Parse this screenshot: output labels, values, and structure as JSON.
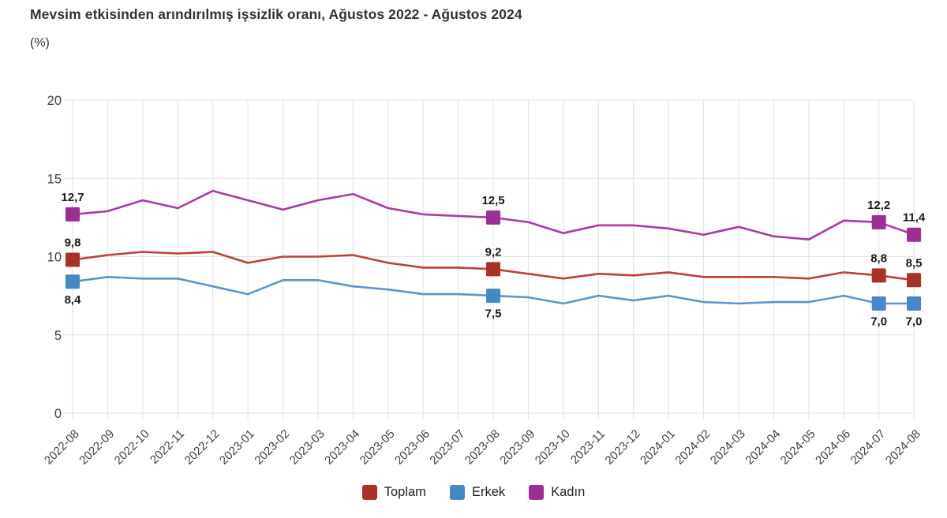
{
  "chart_data": {
    "type": "line",
    "title": "Mevsim etkisinden arındırılmış işsizlik oranı, Ağustos 2022 - Ağustos 2024",
    "unit_label": "(%)",
    "categories": [
      "2022-08",
      "2022-09",
      "2022-10",
      "2022-11",
      "2022-12",
      "2023-01",
      "2023-02",
      "2023-03",
      "2023-04",
      "2023-05",
      "2023-06",
      "2023-07",
      "2023-08",
      "2023-09",
      "2023-10",
      "2023-11",
      "2023-12",
      "2024-01",
      "2024-02",
      "2024-03",
      "2024-04",
      "2024-05",
      "2024-06",
      "2024-07",
      "2024-08"
    ],
    "series": [
      {
        "name": "Toplam",
        "color": "#A93228",
        "line_color": "#BE4132",
        "values": [
          9.8,
          10.1,
          10.3,
          10.2,
          10.3,
          9.6,
          10.0,
          10.0,
          10.1,
          9.6,
          9.3,
          9.3,
          9.2,
          8.9,
          8.6,
          8.9,
          8.8,
          9.0,
          8.7,
          8.7,
          8.7,
          8.6,
          9.0,
          8.8,
          8.5
        ],
        "labeled_points": [
          {
            "i": 0,
            "text": "9,8",
            "side": "above"
          },
          {
            "i": 12,
            "text": "9,2",
            "side": "above"
          },
          {
            "i": 23,
            "text": "8,8",
            "side": "above"
          },
          {
            "i": 24,
            "text": "8,5",
            "side": "above"
          }
        ]
      },
      {
        "name": "Erkek",
        "color": "#4687C7",
        "line_color": "#5D94CF",
        "values": [
          8.4,
          8.7,
          8.6,
          8.6,
          8.1,
          7.6,
          8.5,
          8.5,
          8.1,
          7.9,
          7.6,
          7.6,
          7.5,
          7.4,
          7.0,
          7.5,
          7.2,
          7.5,
          7.1,
          7.0,
          7.1,
          7.1,
          7.5,
          7.0,
          7.0
        ],
        "labeled_points": [
          {
            "i": 0,
            "text": "8,4",
            "side": "below"
          },
          {
            "i": 12,
            "text": "7,5",
            "side": "below"
          },
          {
            "i": 23,
            "text": "7,0",
            "side": "below"
          },
          {
            "i": 24,
            "text": "7,0",
            "side": "below"
          }
        ]
      },
      {
        "name": "Kadın",
        "color": "#9C2E96",
        "line_color": "#AC39A4",
        "values": [
          12.7,
          12.9,
          13.6,
          13.1,
          14.2,
          13.6,
          13.0,
          13.6,
          14.0,
          13.1,
          12.7,
          12.6,
          12.5,
          12.2,
          11.5,
          12.0,
          12.0,
          11.8,
          11.4,
          11.9,
          11.3,
          11.1,
          12.3,
          12.2,
          11.4
        ],
        "labeled_points": [
          {
            "i": 0,
            "text": "12,7",
            "side": "above"
          },
          {
            "i": 12,
            "text": "12,5",
            "side": "above"
          },
          {
            "i": 23,
            "text": "12,2",
            "side": "above"
          },
          {
            "i": 24,
            "text": "11,4",
            "side": "above"
          }
        ]
      }
    ],
    "y_axis": {
      "min": 0,
      "max": 20,
      "tick_interval": 5,
      "ticks": [
        0,
        5,
        10,
        15,
        20
      ]
    },
    "x_axis": {
      "label_rotation": -45
    },
    "grid": true,
    "legend_position": "bottom-center"
  },
  "colors": {
    "background": "#ffffff",
    "grid": "#e2e2e2",
    "axis_label": "#404040",
    "data_label": "#1a1a1a",
    "title": "#333333"
  }
}
